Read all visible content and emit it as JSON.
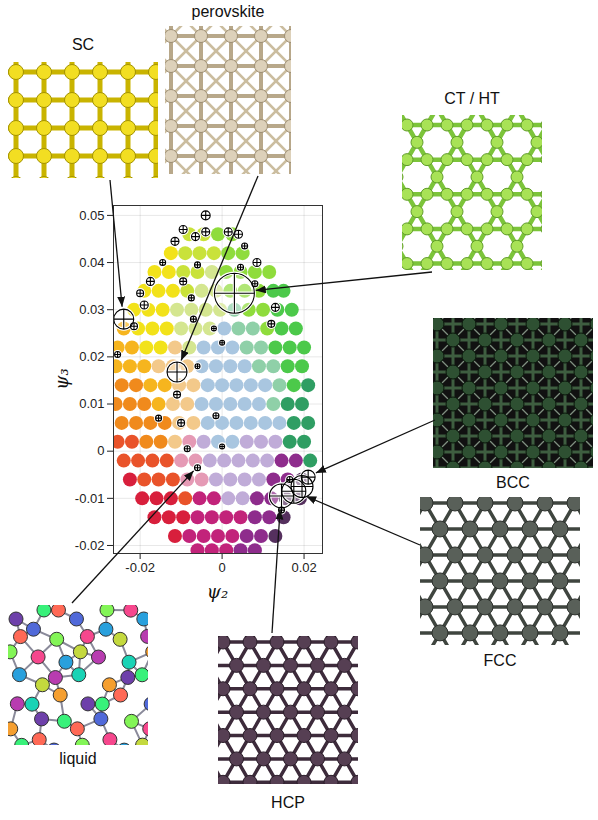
{
  "chart_data": {
    "type": "scatter",
    "xlabel": "ψ₂",
    "ylabel": "ψ₃",
    "xlim": [
      -0.0265,
      0.0245
    ],
    "ylim": [
      -0.0217,
      0.0521
    ],
    "xticks": [
      -0.02,
      0,
      0.02
    ],
    "yticks": [
      -0.02,
      -0.01,
      0,
      0.01,
      0.02,
      0.03,
      0.04,
      0.05
    ],
    "grid": true,
    "series": [
      {
        "type": "scatter",
        "marker": "circle",
        "x": [
          -0.008,
          -0.0045,
          -0.001,
          0.0025,
          -0.0125,
          -0.009,
          -0.0055,
          -0.002,
          0.0015,
          0.005,
          -0.0165,
          -0.013,
          -0.0095,
          -0.006,
          -0.0025,
          0.001,
          0.0045,
          0.008,
          0.0115,
          -0.019,
          -0.0155,
          -0.012,
          -0.0085,
          -0.005,
          -0.0015,
          0.002,
          0.0055,
          0.009,
          0.0125,
          0.015,
          -0.0215,
          -0.018,
          -0.0145,
          -0.011,
          -0.0075,
          -0.004,
          -0.0005,
          0.003,
          0.0065,
          0.01,
          0.0135,
          0.017,
          -0.024,
          -0.0205,
          -0.017,
          -0.0135,
          -0.01,
          -0.0065,
          -0.003,
          0.0005,
          0.004,
          0.0075,
          0.011,
          0.0145,
          0.018,
          -0.0255,
          -0.022,
          -0.0185,
          -0.015,
          -0.0115,
          -0.008,
          -0.0045,
          -0.001,
          0.0025,
          0.006,
          0.0095,
          0.013,
          0.0165,
          0.02,
          -0.026,
          -0.0225,
          -0.019,
          -0.0155,
          -0.012,
          -0.0085,
          -0.005,
          -0.0015,
          0.002,
          0.0055,
          0.009,
          0.0125,
          0.016,
          0.0195,
          -0.0245,
          -0.021,
          -0.0175,
          -0.014,
          -0.0105,
          -0.007,
          -0.0035,
          0,
          0.0035,
          0.007,
          0.0105,
          0.014,
          0.0175,
          0.021,
          -0.026,
          -0.0225,
          -0.019,
          -0.0155,
          -0.012,
          -0.0085,
          -0.005,
          -0.0015,
          0.002,
          0.0055,
          0.009,
          0.0125,
          0.016,
          0.0195,
          -0.0245,
          -0.021,
          -0.0175,
          -0.014,
          -0.0105,
          -0.007,
          -0.0035,
          0,
          0.0035,
          0.007,
          0.0105,
          0.014,
          0.0175,
          0.021,
          -0.0255,
          -0.022,
          -0.0185,
          -0.015,
          -0.0115,
          -0.008,
          -0.0045,
          -0.001,
          0.0025,
          0.006,
          0.0095,
          0.013,
          0.0165,
          0.02,
          -0.024,
          -0.0205,
          -0.017,
          -0.0135,
          -0.01,
          -0.0065,
          -0.003,
          0.0005,
          0.004,
          0.0075,
          0.011,
          0.0145,
          0.018,
          0.0215,
          -0.0225,
          -0.019,
          -0.0155,
          -0.012,
          -0.0085,
          -0.005,
          -0.0015,
          0.002,
          0.0055,
          0.009,
          0.0125,
          0.016,
          0.0195,
          -0.0195,
          -0.016,
          -0.0125,
          -0.009,
          -0.0055,
          -0.002,
          0.0015,
          0.005,
          0.0085,
          0.012,
          0.0155,
          0.019,
          -0.0165,
          -0.013,
          -0.0095,
          -0.006,
          -0.0025,
          0.001,
          0.0045,
          0.008,
          0.0115,
          0.015,
          -0.0115,
          -0.008,
          -0.0045,
          -0.001,
          0.0025,
          0.006,
          0.0095,
          0.013,
          -0.006,
          -0.0025,
          0.001,
          0.0045,
          0.008
        ],
        "values": [
          0.046,
          0.046,
          0.046,
          0.046,
          0.042,
          0.042,
          0.042,
          0.042,
          0.042,
          0.042,
          0.038,
          0.038,
          0.038,
          0.038,
          0.038,
          0.038,
          0.038,
          0.038,
          0.038,
          0.034,
          0.034,
          0.034,
          0.034,
          0.034,
          0.034,
          0.034,
          0.034,
          0.034,
          0.034,
          0.034,
          0.03,
          0.03,
          0.03,
          0.03,
          0.03,
          0.03,
          0.03,
          0.03,
          0.03,
          0.03,
          0.03,
          0.03,
          0.026,
          0.026,
          0.026,
          0.026,
          0.026,
          0.026,
          0.026,
          0.026,
          0.026,
          0.026,
          0.026,
          0.026,
          0.026,
          0.022,
          0.022,
          0.022,
          0.022,
          0.022,
          0.022,
          0.022,
          0.022,
          0.022,
          0.022,
          0.022,
          0.022,
          0.022,
          0.022,
          0.018,
          0.018,
          0.018,
          0.018,
          0.018,
          0.018,
          0.018,
          0.018,
          0.018,
          0.018,
          0.018,
          0.018,
          0.018,
          0.018,
          0.014,
          0.014,
          0.014,
          0.014,
          0.014,
          0.014,
          0.014,
          0.014,
          0.014,
          0.014,
          0.014,
          0.014,
          0.014,
          0.014,
          0.01,
          0.01,
          0.01,
          0.01,
          0.01,
          0.01,
          0.01,
          0.01,
          0.01,
          0.01,
          0.01,
          0.01,
          0.01,
          0.01,
          0.006,
          0.006,
          0.006,
          0.006,
          0.006,
          0.006,
          0.006,
          0.006,
          0.006,
          0.006,
          0.006,
          0.006,
          0.006,
          0.006,
          0.002,
          0.002,
          0.002,
          0.002,
          0.002,
          0.002,
          0.002,
          0.002,
          0.002,
          0.002,
          0.002,
          0.002,
          0.002,
          0.002,
          -0.002,
          -0.002,
          -0.002,
          -0.002,
          -0.002,
          -0.002,
          -0.002,
          -0.002,
          -0.002,
          -0.002,
          -0.002,
          -0.002,
          -0.002,
          -0.002,
          -0.006,
          -0.006,
          -0.006,
          -0.006,
          -0.006,
          -0.006,
          -0.006,
          -0.006,
          -0.006,
          -0.006,
          -0.006,
          -0.006,
          -0.006,
          -0.01,
          -0.01,
          -0.01,
          -0.01,
          -0.01,
          -0.01,
          -0.01,
          -0.01,
          -0.01,
          -0.01,
          -0.01,
          -0.01,
          -0.014,
          -0.014,
          -0.014,
          -0.014,
          -0.014,
          -0.014,
          -0.014,
          -0.014,
          -0.014,
          -0.014,
          -0.018,
          -0.018,
          -0.018,
          -0.018,
          -0.018,
          -0.018,
          -0.018,
          -0.018,
          -0.021,
          -0.021,
          -0.021,
          -0.021,
          -0.021
        ],
        "colors": [
          "#c9e23a",
          "#c9e23a",
          "#8fdc3c",
          "#8fdc3c",
          "#f2e21a",
          "#c9e23a",
          "#c9e23a",
          "#c9e23a",
          "#8fdc3c",
          "#8fdc3c",
          "#f2e21a",
          "#f2e21a",
          "#c9e23a",
          "#c9e23a",
          "#d4e690",
          "#8fdc3c",
          "#8fdc3c",
          "#8fdc3c",
          "#8fdc3c",
          "#f2e21a",
          "#f2e21a",
          "#f2e21a",
          "#c9e23a",
          "#d4e690",
          "#d4e690",
          "#8fdc3c",
          "#8fdc3c",
          "#8fdc3c",
          "#4cc94a",
          "#4cc94a",
          "#f2e21a",
          "#f2e21a",
          "#f2e21a",
          "#d4e690",
          "#d4e690",
          "#d4e690",
          "#d4e690",
          "#8fd0a8",
          "#8fdc3c",
          "#8fdc3c",
          "#4cc94a",
          "#4cc94a",
          "#f6b51e",
          "#f2e21a",
          "#f2e21a",
          "#f2e21a",
          "#d4e690",
          "#d4e690",
          "#d4e690",
          "#a9c6e0",
          "#8fd0a8",
          "#8fd0a8",
          "#8fdc3c",
          "#4cc94a",
          "#4cc94a",
          "#f6b51e",
          "#f6b51e",
          "#f2e21a",
          "#f2e21a",
          "#f3c98a",
          "#d4e690",
          "#a9c6e0",
          "#a9c6e0",
          "#a9c6e0",
          "#8fd0a8",
          "#8fd0a8",
          "#4cc94a",
          "#4cc94a",
          "#4cc94a",
          "#f6b51e",
          "#f6b51e",
          "#f6b51e",
          "#f3c98a",
          "#f3c98a",
          "#f3c98a",
          "#a9c6e0",
          "#a9c6e0",
          "#a9c6e0",
          "#a9c6e0",
          "#8fd0a8",
          "#8fd0a8",
          "#4cc94a",
          "#4cc94a",
          "#f08a1c",
          "#f08a1c",
          "#f6b51e",
          "#f6b51e",
          "#f3c98a",
          "#f3c98a",
          "#a9c6e0",
          "#a9c6e0",
          "#a9c6e0",
          "#a9c6e0",
          "#a9c6e0",
          "#8fd0a8",
          "#4cc94a",
          "#2f9e63",
          "#f08a1c",
          "#f08a1c",
          "#f08a1c",
          "#f6b51e",
          "#f3c98a",
          "#f3c98a",
          "#a9c6e0",
          "#a9c6e0",
          "#a9c6e0",
          "#a9c6e0",
          "#a9c6e0",
          "#8fd0a8",
          "#2f9e63",
          "#2f9e63",
          "#f08a1c",
          "#f08a1c",
          "#f08a1c",
          "#f08a1c",
          "#f3c98a",
          "#f3c98a",
          "#a9c6e0",
          "#a9c6e0",
          "#a9c6e0",
          "#a9c6e0",
          "#a9c6e0",
          "#a9c6e0",
          "#2f9e63",
          "#2f9e63",
          "#e9532a",
          "#e9532a",
          "#f08a1c",
          "#f08a1c",
          "#f3c98a",
          "#e59ab5",
          "#c0acd8",
          "#a9c6e0",
          "#a9c6e0",
          "#c0acd8",
          "#c0acd8",
          "#c0acd8",
          "#2f9e63",
          "#2f9e63",
          "#e9532a",
          "#e9532a",
          "#e9532a",
          "#e9532a",
          "#e59ab5",
          "#e59ab5",
          "#c0acd8",
          "#c0acd8",
          "#c0acd8",
          "#c0acd8",
          "#c0acd8",
          "#8e2c8c",
          "#8e2c8c",
          "#2f9e63",
          "#d81f3c",
          "#e9532a",
          "#e9532a",
          "#e9532a",
          "#e59ab5",
          "#e59ab5",
          "#c0acd8",
          "#c0acd8",
          "#c0acd8",
          "#c0acd8",
          "#8e2c8c",
          "#8e2c8c",
          "#55305e",
          "#d81f3c",
          "#d81f3c",
          "#d81f3c",
          "#e9532a",
          "#c2237a",
          "#c2237a",
          "#c0acd8",
          "#c0acd8",
          "#8e2c8c",
          "#8e2c8c",
          "#55305e",
          "#55305e",
          "#d81f3c",
          "#d81f3c",
          "#d81f3c",
          "#c2237a",
          "#c2237a",
          "#c2237a",
          "#c2237a",
          "#8e2c8c",
          "#8e2c8c",
          "#55305e",
          "#d81f3c",
          "#c2237a",
          "#c2237a",
          "#c2237a",
          "#c2237a",
          "#8e2c8c",
          "#8e2c8c",
          "#55305e",
          "#c2237a",
          "#c2237a",
          "#c2237a",
          "#8e2c8c",
          "#8e2c8c"
        ]
      },
      {
        "type": "bubble",
        "marker": "circle-plus",
        "x": [
          0.003,
          -0.024,
          -0.011,
          0.0145,
          0.0175,
          0.0195,
          0.021,
          -0.006,
          -0.0255,
          -0.0215,
          -0.019,
          -0.02,
          -0.0175,
          -0.0145,
          -0.0115,
          -0.0095,
          -0.0065,
          -0.004,
          -0.004,
          0.0015,
          0.004,
          0.0055,
          0.0085,
          0.0045,
          0.008,
          0.013,
          0.012,
          -0.006,
          -0.0095,
          -0.0075,
          -0.007,
          -0.002,
          0,
          -0.011,
          -0.01,
          -0.0085,
          -0.0155,
          -0.0015,
          0,
          -0.006,
          0.0165,
          0.0145
        ],
        "values": [
          0.0335,
          0.028,
          0.0168,
          -0.0095,
          -0.0085,
          -0.0075,
          -0.0055,
          -0.0035,
          0.0205,
          0.0265,
          0.031,
          0.0335,
          0.036,
          0.04,
          0.0445,
          0.047,
          0.0455,
          0.05,
          0.0465,
          0.0465,
          0.046,
          0.0435,
          0.04,
          0.039,
          0.0355,
          0.0305,
          0.027,
          0.0395,
          0.036,
          0.0325,
          0.028,
          0.026,
          0.023,
          0.012,
          0.006,
          0.0005,
          0.007,
          0.0075,
          0.001,
          0.018,
          -0.006,
          -0.0125
        ],
        "sizes": [
          20,
          10,
          10,
          12,
          12,
          11,
          7,
          3,
          3,
          3.5,
          4,
          3.5,
          4,
          3,
          4,
          4,
          4,
          4.5,
          4,
          4,
          4,
          3,
          4,
          3,
          3,
          4,
          3.5,
          3,
          3.5,
          3,
          3,
          2.5,
          2.5,
          3.5,
          3.5,
          3,
          3,
          3,
          2.5,
          2.5,
          3,
          3
        ]
      }
    ],
    "annotations": [
      {
        "text": "SC",
        "x": -0.024,
        "y": 0.028
      },
      {
        "text": "perovskite",
        "x": -0.011,
        "y": 0.0168
      },
      {
        "text": "CT / HT",
        "x": 0.003,
        "y": 0.0335
      },
      {
        "text": "BCC",
        "x": 0.021,
        "y": -0.0055
      },
      {
        "text": "FCC",
        "x": 0.0175,
        "y": -0.0085
      },
      {
        "text": "HCP",
        "x": 0.0145,
        "y": -0.0095
      },
      {
        "text": "liquid",
        "x": -0.006,
        "y": -0.0035
      }
    ]
  }
}
